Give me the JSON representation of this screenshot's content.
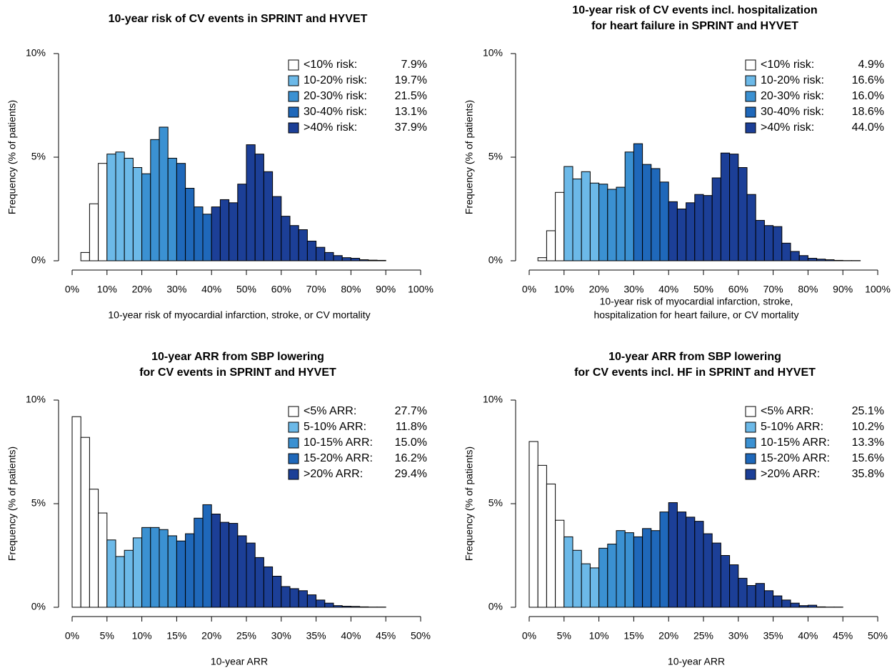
{
  "chart_data": [
    {
      "type": "histogram",
      "title": [
        "10-year risk of CV events in SPRINT and HYVET"
      ],
      "xlabel": [
        "10-year risk of myocardial infarction, stroke, or CV mortality"
      ],
      "ylabel": "Frequency (% of patients)",
      "xlim": [
        0,
        100
      ],
      "ylim": [
        0,
        10
      ],
      "xticks": [
        {
          "value": 0,
          "label": "0%"
        },
        {
          "value": 10,
          "label": "10%"
        },
        {
          "value": 20,
          "label": "20%"
        },
        {
          "value": 30,
          "label": "30%"
        },
        {
          "value": 40,
          "label": "40%"
        },
        {
          "value": 50,
          "label": "50%"
        },
        {
          "value": 60,
          "label": "60%"
        },
        {
          "value": 70,
          "label": "70%"
        },
        {
          "value": 80,
          "label": "80%"
        },
        {
          "value": 90,
          "label": "90%"
        },
        {
          "value": 100,
          "label": "100%"
        }
      ],
      "yticks": [
        {
          "value": 0,
          "label": "0%"
        },
        {
          "value": 5,
          "label": "5%"
        },
        {
          "value": 10,
          "label": "10%"
        }
      ],
      "legend": "top-right",
      "series": [
        {
          "name": "<10% risk:",
          "color": "#ffffff",
          "share": 7.9,
          "share_label": "7.9%",
          "bins": [
            0,
            2.5,
            5,
            7.5,
            10
          ],
          "values": [
            0,
            0.4,
            2.75,
            4.7
          ]
        },
        {
          "name": "10-20% risk:",
          "color": "#6cb9e8",
          "share": 19.7,
          "share_label": "19.7%",
          "bins": [
            10,
            12.5,
            15,
            17.5,
            20
          ],
          "values": [
            5.15,
            5.25,
            4.95,
            4.5
          ]
        },
        {
          "name": "20-30% risk:",
          "color": "#3b91d2",
          "share": 21.5,
          "share_label": "21.5%",
          "bins": [
            20,
            22.5,
            25,
            27.5,
            30
          ],
          "values": [
            4.2,
            5.85,
            6.45,
            4.95
          ]
        },
        {
          "name": "30-40% risk:",
          "color": "#1f68ba",
          "share": 13.1,
          "share_label": "13.1%",
          "bins": [
            30,
            32.5,
            35,
            37.5,
            40
          ],
          "values": [
            4.7,
            3.5,
            2.6,
            2.25
          ]
        },
        {
          "name": ">40% risk:",
          "color": "#1c3f97",
          "share": 37.9,
          "share_label": "37.9%",
          "bins": [
            40,
            42.5,
            45,
            47.5,
            50,
            52.5,
            55,
            57.5,
            60,
            62.5,
            65,
            67.5,
            70,
            72.5,
            75,
            77.5,
            80,
            82.5,
            85,
            87.5,
            90,
            92.5,
            95,
            97.5,
            100
          ],
          "values": [
            2.6,
            2.95,
            2.8,
            3.7,
            5.6,
            5.15,
            4.3,
            3.1,
            2.15,
            1.7,
            1.5,
            0.95,
            0.65,
            0.4,
            0.25,
            0.15,
            0.12,
            0.05,
            0.03,
            0.02,
            0,
            0,
            0,
            0
          ]
        }
      ]
    },
    {
      "type": "histogram",
      "title": [
        "10-year risk of CV events incl. hospitalization",
        "for heart failure in SPRINT and HYVET"
      ],
      "xlabel": [
        "10-year risk of myocardial infarction, stroke,",
        "hospitalization for heart failure, or CV mortality"
      ],
      "ylabel": "Frequency (% of patients)",
      "xlim": [
        0,
        100
      ],
      "ylim": [
        0,
        10
      ],
      "xticks": [
        {
          "value": 0,
          "label": "0%"
        },
        {
          "value": 10,
          "label": "10%"
        },
        {
          "value": 20,
          "label": "20%"
        },
        {
          "value": 30,
          "label": "30%"
        },
        {
          "value": 40,
          "label": "40%"
        },
        {
          "value": 50,
          "label": "50%"
        },
        {
          "value": 60,
          "label": "60%"
        },
        {
          "value": 70,
          "label": "70%"
        },
        {
          "value": 80,
          "label": "80%"
        },
        {
          "value": 90,
          "label": "90%"
        },
        {
          "value": 100,
          "label": "100%"
        }
      ],
      "yticks": [
        {
          "value": 0,
          "label": "0%"
        },
        {
          "value": 5,
          "label": "5%"
        },
        {
          "value": 10,
          "label": "10%"
        }
      ],
      "legend": "top-right",
      "series": [
        {
          "name": "<10% risk:",
          "color": "#ffffff",
          "share": 4.9,
          "share_label": "4.9%",
          "bins": [
            0,
            2.5,
            5,
            7.5,
            10
          ],
          "values": [
            0,
            0.15,
            1.45,
            3.3
          ]
        },
        {
          "name": "10-20% risk:",
          "color": "#6cb9e8",
          "share": 16.6,
          "share_label": "16.6%",
          "bins": [
            10,
            12.5,
            15,
            17.5,
            20
          ],
          "values": [
            4.55,
            3.95,
            4.3,
            3.75
          ]
        },
        {
          "name": "20-30% risk:",
          "color": "#3b91d2",
          "share": 16.0,
          "share_label": "16.0%",
          "bins": [
            20,
            22.5,
            25,
            27.5,
            30
          ],
          "values": [
            3.7,
            3.45,
            3.55,
            5.25
          ]
        },
        {
          "name": "30-40% risk:",
          "color": "#1f68ba",
          "share": 18.6,
          "share_label": "18.6%",
          "bins": [
            30,
            32.5,
            35,
            37.5,
            40
          ],
          "values": [
            5.65,
            4.65,
            4.45,
            3.8
          ]
        },
        {
          "name": ">40% risk:",
          "color": "#1c3f97",
          "share": 44.0,
          "share_label": "44.0%",
          "bins": [
            40,
            42.5,
            45,
            47.5,
            50,
            52.5,
            55,
            57.5,
            60,
            62.5,
            65,
            67.5,
            70,
            72.5,
            75,
            77.5,
            80,
            82.5,
            85,
            87.5,
            90,
            92.5,
            95,
            97.5,
            100
          ],
          "values": [
            2.85,
            2.5,
            2.8,
            3.2,
            3.15,
            4.0,
            5.2,
            5.15,
            4.5,
            3.2,
            1.95,
            1.7,
            1.65,
            0.85,
            0.45,
            0.25,
            0.12,
            0.08,
            0.05,
            0.02,
            0.01,
            0.01,
            0,
            0
          ]
        }
      ]
    },
    {
      "type": "histogram",
      "title": [
        "10-year ARR from SBP lowering",
        "for CV events in SPRINT and HYVET"
      ],
      "xlabel": [
        "10-year ARR"
      ],
      "ylabel": "Frequency (% of patients)",
      "xlim": [
        0,
        50
      ],
      "ylim": [
        0,
        10
      ],
      "xticks": [
        {
          "value": 0,
          "label": "0%"
        },
        {
          "value": 5,
          "label": "5%"
        },
        {
          "value": 10,
          "label": "10%"
        },
        {
          "value": 15,
          "label": "15%"
        },
        {
          "value": 20,
          "label": "20%"
        },
        {
          "value": 25,
          "label": "25%"
        },
        {
          "value": 30,
          "label": "30%"
        },
        {
          "value": 35,
          "label": "35%"
        },
        {
          "value": 40,
          "label": "40%"
        },
        {
          "value": 45,
          "label": "45%"
        },
        {
          "value": 50,
          "label": "50%"
        }
      ],
      "yticks": [
        {
          "value": 0,
          "label": "0%"
        },
        {
          "value": 5,
          "label": "5%"
        },
        {
          "value": 10,
          "label": "10%"
        }
      ],
      "legend": "top-right",
      "series": [
        {
          "name": "<5% ARR:",
          "color": "#ffffff",
          "share": 27.7,
          "share_label": "27.7%",
          "bins": [
            0,
            1.25,
            2.5,
            3.75,
            5
          ],
          "values": [
            9.2,
            8.2,
            5.7,
            4.55
          ]
        },
        {
          "name": "5-10% ARR:",
          "color": "#6cb9e8",
          "share": 11.8,
          "share_label": "11.8%",
          "bins": [
            5,
            6.25,
            7.5,
            8.75,
            10
          ],
          "values": [
            3.25,
            2.45,
            2.75,
            3.35
          ]
        },
        {
          "name": "10-15% ARR:",
          "color": "#3b91d2",
          "share": 15.0,
          "share_label": "15.0%",
          "bins": [
            10,
            11.25,
            12.5,
            13.75,
            15
          ],
          "values": [
            3.85,
            3.85,
            3.75,
            3.45
          ]
        },
        {
          "name": "15-20% ARR:",
          "color": "#1f68ba",
          "share": 16.2,
          "share_label": "16.2%",
          "bins": [
            15,
            16.25,
            17.5,
            18.75,
            20
          ],
          "values": [
            3.2,
            3.55,
            4.3,
            4.95
          ]
        },
        {
          "name": ">20% ARR:",
          "color": "#1c3f97",
          "share": 29.4,
          "share_label": "29.4%",
          "bins": [
            20,
            21.25,
            22.5,
            23.75,
            25,
            26.25,
            27.5,
            28.75,
            30,
            31.25,
            32.5,
            33.75,
            35,
            36.25,
            37.5,
            38.75,
            40,
            41.25,
            42.5,
            43.75,
            45,
            46.25,
            47.5,
            48.75,
            50
          ],
          "values": [
            4.5,
            4.1,
            4.05,
            3.45,
            3.1,
            2.4,
            1.95,
            1.5,
            1.0,
            0.9,
            0.8,
            0.6,
            0.35,
            0.2,
            0.08,
            0.05,
            0.04,
            0.02,
            0.01,
            0.01,
            0,
            0,
            0,
            0
          ]
        }
      ]
    },
    {
      "type": "histogram",
      "title": [
        "10-year ARR from SBP lowering",
        "for CV events incl. HF in SPRINT and HYVET"
      ],
      "xlabel": [
        "10-year ARR"
      ],
      "ylabel": "Frequency (% of patients)",
      "xlim": [
        0,
        50
      ],
      "ylim": [
        0,
        10
      ],
      "xticks": [
        {
          "value": 0,
          "label": "0%"
        },
        {
          "value": 5,
          "label": "5%"
        },
        {
          "value": 10,
          "label": "10%"
        },
        {
          "value": 15,
          "label": "15%"
        },
        {
          "value": 20,
          "label": "20%"
        },
        {
          "value": 25,
          "label": "25%"
        },
        {
          "value": 30,
          "label": "30%"
        },
        {
          "value": 35,
          "label": "35%"
        },
        {
          "value": 40,
          "label": "40%"
        },
        {
          "value": 45,
          "label": "45%"
        },
        {
          "value": 50,
          "label": "50%"
        }
      ],
      "yticks": [
        {
          "value": 0,
          "label": "0%"
        },
        {
          "value": 5,
          "label": "5%"
        },
        {
          "value": 10,
          "label": "10%"
        }
      ],
      "legend": "top-right",
      "series": [
        {
          "name": "<5% ARR:",
          "color": "#ffffff",
          "share": 25.1,
          "share_label": "25.1%",
          "bins": [
            0,
            1.25,
            2.5,
            3.75,
            5
          ],
          "values": [
            8.0,
            6.85,
            5.95,
            4.2
          ]
        },
        {
          "name": "5-10% ARR:",
          "color": "#6cb9e8",
          "share": 10.2,
          "share_label": "10.2%",
          "bins": [
            5,
            6.25,
            7.5,
            8.75,
            10
          ],
          "values": [
            3.4,
            2.75,
            2.1,
            1.9
          ]
        },
        {
          "name": "10-15% ARR:",
          "color": "#3b91d2",
          "share": 13.3,
          "share_label": "13.3%",
          "bins": [
            10,
            11.25,
            12.5,
            13.75,
            15
          ],
          "values": [
            2.85,
            3.05,
            3.7,
            3.6
          ]
        },
        {
          "name": "15-20% ARR:",
          "color": "#1f68ba",
          "share": 15.6,
          "share_label": "15.6%",
          "bins": [
            15,
            16.25,
            17.5,
            18.75,
            20
          ],
          "values": [
            3.4,
            3.8,
            3.7,
            4.6
          ]
        },
        {
          "name": ">20% ARR:",
          "color": "#1c3f97",
          "share": 35.8,
          "share_label": "35.8%",
          "bins": [
            20,
            21.25,
            22.5,
            23.75,
            25,
            26.25,
            27.5,
            28.75,
            30,
            31.25,
            32.5,
            33.75,
            35,
            36.25,
            37.5,
            38.75,
            40,
            41.25,
            42.5,
            43.75,
            45,
            46.25,
            47.5,
            48.75,
            50
          ],
          "values": [
            5.05,
            4.6,
            4.35,
            4.15,
            3.55,
            3.1,
            2.5,
            2.05,
            1.4,
            1.05,
            1.15,
            0.8,
            0.55,
            0.35,
            0.2,
            0.08,
            0.1,
            0.02,
            0.01,
            0.01,
            0,
            0,
            0,
            0
          ]
        }
      ]
    }
  ]
}
